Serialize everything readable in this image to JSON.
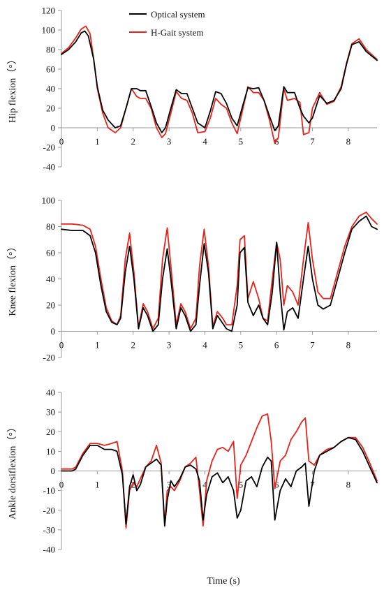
{
  "chart_data": [
    {
      "type": "line",
      "ylabel": "Hip flexion（°）",
      "xlabel": "",
      "ylim": [
        -40,
        120
      ],
      "yticks": [
        -40,
        -20,
        0,
        20,
        40,
        60,
        80,
        100,
        120
      ],
      "xlim": [
        0,
        8.8
      ],
      "xticks": [
        0,
        1,
        2,
        3,
        4,
        5,
        6,
        7,
        8
      ],
      "legend": "top-center",
      "series": [
        {
          "name": "Optical system",
          "color": "#000000",
          "x": [
            0,
            0.2,
            0.4,
            0.55,
            0.65,
            0.75,
            0.9,
            1.0,
            1.15,
            1.3,
            1.5,
            1.65,
            1.8,
            1.95,
            2.1,
            2.2,
            2.35,
            2.5,
            2.65,
            2.8,
            2.9,
            3.05,
            3.2,
            3.35,
            3.5,
            3.65,
            3.8,
            4.0,
            4.15,
            4.3,
            4.45,
            4.6,
            4.75,
            4.9,
            5.05,
            5.2,
            5.35,
            5.5,
            5.65,
            5.8,
            5.95,
            6.05,
            6.2,
            6.3,
            6.5,
            6.65,
            6.75,
            6.9,
            7.0,
            7.2,
            7.4,
            7.6,
            7.8,
            7.95,
            8.1,
            8.3,
            8.5,
            8.8
          ],
          "values": [
            75,
            80,
            88,
            97,
            99,
            94,
            70,
            42,
            18,
            8,
            0,
            2,
            20,
            40,
            40,
            38,
            38,
            22,
            5,
            -5,
            0,
            20,
            39,
            35,
            35,
            20,
            5,
            0,
            17,
            37,
            35,
            25,
            10,
            2,
            22,
            41,
            40,
            41,
            28,
            12,
            -3,
            2,
            42,
            36,
            36,
            20,
            12,
            5,
            10,
            33,
            25,
            28,
            40,
            65,
            85,
            88,
            78,
            69
          ]
        },
        {
          "name": "H-Gait system",
          "color": "#e8231b",
          "x": [
            0,
            0.2,
            0.4,
            0.55,
            0.68,
            0.8,
            0.9,
            1.0,
            1.15,
            1.3,
            1.5,
            1.65,
            1.8,
            1.95,
            2.1,
            2.2,
            2.35,
            2.5,
            2.65,
            2.8,
            2.9,
            3.05,
            3.2,
            3.35,
            3.5,
            3.65,
            3.8,
            4.0,
            4.15,
            4.3,
            4.45,
            4.6,
            4.75,
            4.9,
            5.05,
            5.2,
            5.35,
            5.5,
            5.65,
            5.8,
            5.95,
            6.05,
            6.2,
            6.3,
            6.5,
            6.65,
            6.75,
            6.9,
            7.0,
            7.2,
            7.4,
            7.6,
            7.8,
            7.95,
            8.1,
            8.3,
            8.5,
            8.8
          ],
          "values": [
            76,
            82,
            92,
            101,
            104,
            96,
            70,
            40,
            15,
            0,
            -5,
            0,
            20,
            40,
            32,
            30,
            30,
            20,
            0,
            -10,
            -6,
            15,
            37,
            30,
            28,
            15,
            -5,
            -4,
            10,
            30,
            24,
            20,
            5,
            -6,
            18,
            42,
            36,
            36,
            28,
            8,
            -16,
            -10,
            40,
            28,
            30,
            26,
            -7,
            -5,
            20,
            36,
            24,
            27,
            42,
            66,
            86,
            91,
            80,
            70
          ]
        }
      ]
    },
    {
      "type": "line",
      "ylabel": "Knee flexion（°）",
      "xlabel": "",
      "ylim": [
        -20,
        100
      ],
      "yticks": [
        -20,
        0,
        20,
        40,
        60,
        80,
        100
      ],
      "xlim": [
        0,
        8.8
      ],
      "xticks": [
        0,
        1,
        2,
        3,
        4,
        5,
        6,
        7,
        8
      ],
      "series": [
        {
          "name": "Optical system",
          "color": "#000000",
          "x": [
            0,
            0.3,
            0.6,
            0.8,
            0.95,
            1.1,
            1.25,
            1.4,
            1.55,
            1.65,
            1.78,
            1.9,
            2.02,
            2.15,
            2.28,
            2.4,
            2.55,
            2.7,
            2.82,
            2.95,
            3.05,
            3.2,
            3.33,
            3.45,
            3.6,
            3.75,
            3.85,
            3.98,
            4.1,
            4.22,
            4.35,
            4.5,
            4.6,
            4.75,
            4.9,
            4.98,
            5.1,
            5.2,
            5.35,
            5.5,
            5.62,
            5.75,
            5.88,
            6.0,
            6.1,
            6.2,
            6.3,
            6.45,
            6.6,
            6.75,
            6.88,
            7.0,
            7.15,
            7.3,
            7.5,
            7.7,
            7.9,
            8.1,
            8.3,
            8.5,
            8.65,
            8.8
          ],
          "values": [
            78,
            77,
            77,
            73,
            60,
            35,
            15,
            7,
            5,
            10,
            45,
            65,
            40,
            2,
            18,
            12,
            0,
            5,
            40,
            63,
            40,
            2,
            18,
            12,
            0,
            5,
            35,
            67,
            45,
            2,
            12,
            6,
            2,
            0,
            20,
            60,
            64,
            22,
            12,
            20,
            10,
            5,
            30,
            68,
            30,
            1,
            15,
            18,
            10,
            40,
            65,
            40,
            20,
            17,
            20,
            40,
            60,
            78,
            84,
            88,
            80,
            78
          ]
        },
        {
          "name": "H-Gait system",
          "color": "#e8231b",
          "x": [
            0,
            0.3,
            0.6,
            0.8,
            0.95,
            1.1,
            1.25,
            1.4,
            1.55,
            1.65,
            1.78,
            1.9,
            2.02,
            2.15,
            2.28,
            2.4,
            2.55,
            2.7,
            2.82,
            2.95,
            3.05,
            3.2,
            3.33,
            3.45,
            3.6,
            3.75,
            3.85,
            3.98,
            4.1,
            4.22,
            4.35,
            4.5,
            4.6,
            4.75,
            4.9,
            4.98,
            5.1,
            5.2,
            5.35,
            5.5,
            5.62,
            5.75,
            5.88,
            6.0,
            6.1,
            6.2,
            6.3,
            6.45,
            6.6,
            6.75,
            6.88,
            7.0,
            7.15,
            7.3,
            7.5,
            7.7,
            7.9,
            8.1,
            8.3,
            8.5,
            8.65,
            8.8
          ],
          "values": [
            82,
            82,
            81,
            78,
            65,
            40,
            18,
            8,
            5,
            12,
            55,
            75,
            45,
            3,
            21,
            15,
            2,
            10,
            55,
            79,
            50,
            5,
            21,
            15,
            2,
            10,
            50,
            78,
            50,
            4,
            15,
            10,
            5,
            5,
            35,
            70,
            73,
            25,
            38,
            25,
            10,
            8,
            40,
            68,
            55,
            20,
            35,
            30,
            20,
            55,
            83,
            55,
            30,
            25,
            25,
            45,
            65,
            80,
            88,
            91,
            86,
            82
          ]
        }
      ]
    },
    {
      "type": "line",
      "ylabel": "Ankle dorsiflexion（°）",
      "xlabel": "Time (s)",
      "ylim": [
        -40,
        40
      ],
      "yticks": [
        -40,
        -30,
        -20,
        -10,
        0,
        10,
        20,
        30,
        40
      ],
      "xlim": [
        0,
        8.8
      ],
      "xticks": [
        0,
        1,
        2,
        3,
        4,
        5,
        6,
        7,
        8
      ],
      "series": [
        {
          "name": "Optical system",
          "color": "#000000",
          "x": [
            0,
            0.3,
            0.4,
            0.6,
            0.8,
            1.0,
            1.2,
            1.4,
            1.55,
            1.7,
            1.8,
            1.9,
            2.0,
            2.1,
            2.2,
            2.35,
            2.5,
            2.65,
            2.78,
            2.88,
            2.95,
            3.05,
            3.15,
            3.3,
            3.45,
            3.6,
            3.75,
            3.85,
            3.95,
            4.05,
            4.2,
            4.35,
            4.5,
            4.65,
            4.8,
            4.9,
            5.0,
            5.15,
            5.3,
            5.45,
            5.6,
            5.75,
            5.85,
            5.95,
            6.1,
            6.25,
            6.4,
            6.55,
            6.7,
            6.8,
            6.9,
            7.05,
            7.2,
            7.4,
            7.6,
            7.8,
            8.0,
            8.2,
            8.4,
            8.6,
            8.8
          ],
          "values": [
            0,
            0,
            1,
            8,
            13,
            13,
            11,
            11,
            10,
            -2,
            -27,
            -8,
            -2,
            -10,
            -7,
            2,
            4,
            6,
            3,
            -28,
            -15,
            -5,
            -8,
            -4,
            2,
            3,
            1,
            -5,
            -25,
            -12,
            -3,
            -1,
            -6,
            -3,
            -10,
            -24,
            -20,
            -5,
            -3,
            -8,
            2,
            7,
            5,
            -25,
            -10,
            -4,
            -8,
            0,
            2,
            4,
            -18,
            0,
            8,
            10,
            12,
            15,
            17,
            16,
            10,
            2,
            -6
          ]
        },
        {
          "name": "H-Gait system",
          "color": "#e8231b",
          "x": [
            0,
            0.3,
            0.4,
            0.6,
            0.8,
            1.0,
            1.2,
            1.4,
            1.55,
            1.7,
            1.8,
            1.9,
            2.0,
            2.1,
            2.2,
            2.35,
            2.5,
            2.65,
            2.78,
            2.88,
            2.95,
            3.05,
            3.15,
            3.3,
            3.45,
            3.6,
            3.75,
            3.85,
            3.95,
            4.05,
            4.2,
            4.35,
            4.5,
            4.65,
            4.8,
            4.9,
            5.0,
            5.15,
            5.3,
            5.45,
            5.6,
            5.75,
            5.85,
            5.95,
            6.1,
            6.25,
            6.4,
            6.55,
            6.7,
            6.8,
            6.9,
            7.05,
            7.2,
            7.4,
            7.6,
            7.8,
            8.0,
            8.2,
            8.4,
            8.6,
            8.8
          ],
          "values": [
            1,
            1,
            2,
            9,
            14,
            14,
            13,
            14,
            15,
            0,
            -29,
            -10,
            -6,
            -8,
            -4,
            2,
            5,
            13,
            4,
            -27,
            -10,
            -8,
            -10,
            -5,
            2,
            4,
            7,
            -10,
            -28,
            -5,
            5,
            11,
            12,
            10,
            15,
            -14,
            3,
            8,
            15,
            22,
            28,
            29,
            15,
            -9,
            5,
            8,
            16,
            20,
            25,
            27,
            5,
            3,
            8,
            11,
            12,
            15,
            17,
            17,
            12,
            4,
            -5
          ]
        }
      ]
    }
  ]
}
